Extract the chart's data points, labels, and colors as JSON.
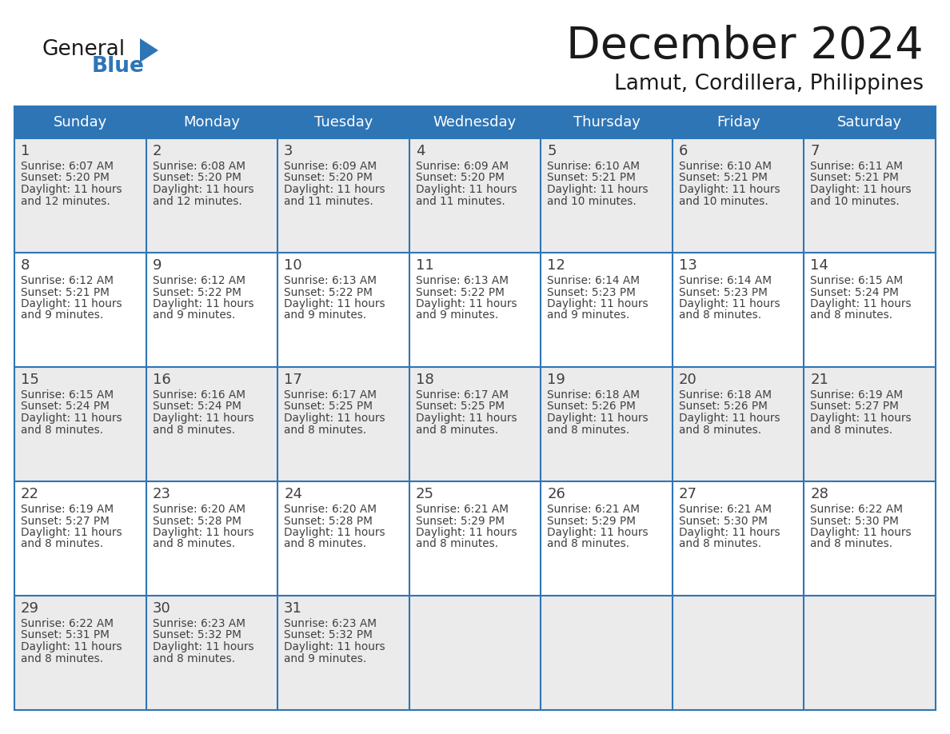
{
  "title": "December 2024",
  "subtitle": "Lamut, Cordillera, Philippines",
  "header_bg": "#2E75B6",
  "header_text_color": "#FFFFFF",
  "cell_bg_odd": "#EBEBEB",
  "cell_bg_even": "#FFFFFF",
  "border_color": "#2E75B6",
  "text_color": "#404040",
  "days_of_week": [
    "Sunday",
    "Monday",
    "Tuesday",
    "Wednesday",
    "Thursday",
    "Friday",
    "Saturday"
  ],
  "calendar_data": [
    [
      {
        "day": "1",
        "sunrise": "6:07 AM",
        "sunset": "5:20 PM",
        "daylight": "11 hours",
        "daylight2": "and 12 minutes."
      },
      {
        "day": "2",
        "sunrise": "6:08 AM",
        "sunset": "5:20 PM",
        "daylight": "11 hours",
        "daylight2": "and 12 minutes."
      },
      {
        "day": "3",
        "sunrise": "6:09 AM",
        "sunset": "5:20 PM",
        "daylight": "11 hours",
        "daylight2": "and 11 minutes."
      },
      {
        "day": "4",
        "sunrise": "6:09 AM",
        "sunset": "5:20 PM",
        "daylight": "11 hours",
        "daylight2": "and 11 minutes."
      },
      {
        "day": "5",
        "sunrise": "6:10 AM",
        "sunset": "5:21 PM",
        "daylight": "11 hours",
        "daylight2": "and 10 minutes."
      },
      {
        "day": "6",
        "sunrise": "6:10 AM",
        "sunset": "5:21 PM",
        "daylight": "11 hours",
        "daylight2": "and 10 minutes."
      },
      {
        "day": "7",
        "sunrise": "6:11 AM",
        "sunset": "5:21 PM",
        "daylight": "11 hours",
        "daylight2": "and 10 minutes."
      }
    ],
    [
      {
        "day": "8",
        "sunrise": "6:12 AM",
        "sunset": "5:21 PM",
        "daylight": "11 hours",
        "daylight2": "and 9 minutes."
      },
      {
        "day": "9",
        "sunrise": "6:12 AM",
        "sunset": "5:22 PM",
        "daylight": "11 hours",
        "daylight2": "and 9 minutes."
      },
      {
        "day": "10",
        "sunrise": "6:13 AM",
        "sunset": "5:22 PM",
        "daylight": "11 hours",
        "daylight2": "and 9 minutes."
      },
      {
        "day": "11",
        "sunrise": "6:13 AM",
        "sunset": "5:22 PM",
        "daylight": "11 hours",
        "daylight2": "and 9 minutes."
      },
      {
        "day": "12",
        "sunrise": "6:14 AM",
        "sunset": "5:23 PM",
        "daylight": "11 hours",
        "daylight2": "and 9 minutes."
      },
      {
        "day": "13",
        "sunrise": "6:14 AM",
        "sunset": "5:23 PM",
        "daylight": "11 hours",
        "daylight2": "and 8 minutes."
      },
      {
        "day": "14",
        "sunrise": "6:15 AM",
        "sunset": "5:24 PM",
        "daylight": "11 hours",
        "daylight2": "and 8 minutes."
      }
    ],
    [
      {
        "day": "15",
        "sunrise": "6:15 AM",
        "sunset": "5:24 PM",
        "daylight": "11 hours",
        "daylight2": "and 8 minutes."
      },
      {
        "day": "16",
        "sunrise": "6:16 AM",
        "sunset": "5:24 PM",
        "daylight": "11 hours",
        "daylight2": "and 8 minutes."
      },
      {
        "day": "17",
        "sunrise": "6:17 AM",
        "sunset": "5:25 PM",
        "daylight": "11 hours",
        "daylight2": "and 8 minutes."
      },
      {
        "day": "18",
        "sunrise": "6:17 AM",
        "sunset": "5:25 PM",
        "daylight": "11 hours",
        "daylight2": "and 8 minutes."
      },
      {
        "day": "19",
        "sunrise": "6:18 AM",
        "sunset": "5:26 PM",
        "daylight": "11 hours",
        "daylight2": "and 8 minutes."
      },
      {
        "day": "20",
        "sunrise": "6:18 AM",
        "sunset": "5:26 PM",
        "daylight": "11 hours",
        "daylight2": "and 8 minutes."
      },
      {
        "day": "21",
        "sunrise": "6:19 AM",
        "sunset": "5:27 PM",
        "daylight": "11 hours",
        "daylight2": "and 8 minutes."
      }
    ],
    [
      {
        "day": "22",
        "sunrise": "6:19 AM",
        "sunset": "5:27 PM",
        "daylight": "11 hours",
        "daylight2": "and 8 minutes."
      },
      {
        "day": "23",
        "sunrise": "6:20 AM",
        "sunset": "5:28 PM",
        "daylight": "11 hours",
        "daylight2": "and 8 minutes."
      },
      {
        "day": "24",
        "sunrise": "6:20 AM",
        "sunset": "5:28 PM",
        "daylight": "11 hours",
        "daylight2": "and 8 minutes."
      },
      {
        "day": "25",
        "sunrise": "6:21 AM",
        "sunset": "5:29 PM",
        "daylight": "11 hours",
        "daylight2": "and 8 minutes."
      },
      {
        "day": "26",
        "sunrise": "6:21 AM",
        "sunset": "5:29 PM",
        "daylight": "11 hours",
        "daylight2": "and 8 minutes."
      },
      {
        "day": "27",
        "sunrise": "6:21 AM",
        "sunset": "5:30 PM",
        "daylight": "11 hours",
        "daylight2": "and 8 minutes."
      },
      {
        "day": "28",
        "sunrise": "6:22 AM",
        "sunset": "5:30 PM",
        "daylight": "11 hours",
        "daylight2": "and 8 minutes."
      }
    ],
    [
      {
        "day": "29",
        "sunrise": "6:22 AM",
        "sunset": "5:31 PM",
        "daylight": "11 hours",
        "daylight2": "and 8 minutes."
      },
      {
        "day": "30",
        "sunrise": "6:23 AM",
        "sunset": "5:32 PM",
        "daylight": "11 hours",
        "daylight2": "and 8 minutes."
      },
      {
        "day": "31",
        "sunrise": "6:23 AM",
        "sunset": "5:32 PM",
        "daylight": "11 hours",
        "daylight2": "and 9 minutes."
      },
      null,
      null,
      null,
      null
    ]
  ],
  "figsize": [
    11.88,
    9.18
  ],
  "dpi": 100
}
